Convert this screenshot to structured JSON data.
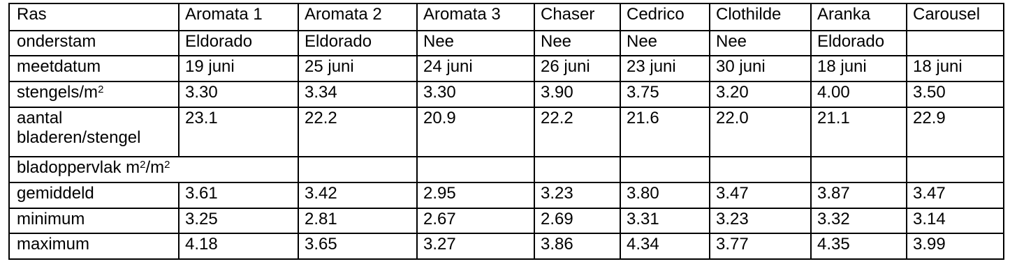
{
  "table": {
    "columns": [
      "Ras",
      "Aromata 1",
      "Aromata 2",
      "Aromata 3",
      "Chaser",
      "Cedrico",
      "Clothilde",
      "Aranka",
      "Carousel"
    ],
    "rows": {
      "rootstock": {
        "label": "onderstam",
        "values": [
          "Eldorado",
          "Eldorado",
          "Nee",
          "Nee",
          "Nee",
          "Nee",
          "Eldorado",
          ""
        ]
      },
      "date": {
        "label": "meetdatum",
        "values": [
          "19 juni",
          "25 juni",
          "24 juni",
          "26 juni",
          "23 juni",
          "30 juni",
          "18 juni",
          "18 juni"
        ]
      },
      "stems": {
        "label": "stengels/m",
        "label_sup": "2",
        "values": [
          "3.30",
          "3.34",
          "3.30",
          "3.90",
          "3.75",
          "3.20",
          "4.00",
          "3.50"
        ]
      },
      "leaves": {
        "label": "aantal bladeren/stengel",
        "values": [
          "23.1",
          "22.2",
          "20.9",
          "22.2",
          "21.6",
          "22.0",
          "21.1",
          "22.9"
        ]
      },
      "leaf_area_section": {
        "label_part1": "bladoppervlak m",
        "label_sup1": "2",
        "label_part2": "/m",
        "label_sup2": "2"
      },
      "average": {
        "label": "gemiddeld",
        "values": [
          "3.61",
          "3.42",
          "2.95",
          "3.23",
          "3.80",
          "3.47",
          "3.87",
          "3.47"
        ]
      },
      "minimum": {
        "label": "minimum",
        "values": [
          "3.25",
          "2.81",
          "2.67",
          "2.69",
          "3.31",
          "3.23",
          "3.32",
          "3.14"
        ]
      },
      "maximum": {
        "label": "maximum",
        "values": [
          "4.18",
          "3.65",
          "3.27",
          "3.86",
          "4.34",
          "3.77",
          "4.35",
          "3.99"
        ]
      }
    }
  }
}
